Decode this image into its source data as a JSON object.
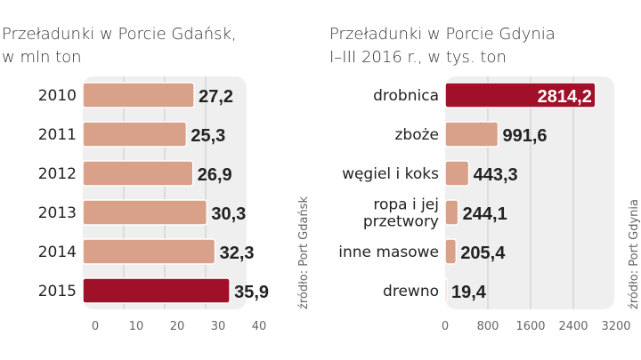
{
  "chart_data": [
    {
      "type": "bar",
      "orientation": "horizontal",
      "title": "Przeładunki w Porcie Gdańsk,",
      "subtitle": "w mln ton",
      "categories": [
        "2010",
        "2011",
        "2012",
        "2013",
        "2014",
        "2015"
      ],
      "values": [
        27.2,
        25.3,
        26.9,
        30.3,
        32.3,
        35.9
      ],
      "value_labels": [
        "27,2",
        "25,3",
        "26,9",
        "30,3",
        "32,3",
        "35,9"
      ],
      "highlight_index": 5,
      "xlim": [
        0,
        40
      ],
      "xticks": [
        "0",
        "10",
        "20",
        "30",
        "40"
      ],
      "tick_values": [
        0,
        10,
        20,
        30,
        40
      ],
      "grid": true,
      "source": "źródło: Port Gdańsk"
    },
    {
      "type": "bar",
      "orientation": "horizontal",
      "title": "Przeładunki w Porcie Gdynia",
      "subtitle": "I–III 2016 r., w tys. ton",
      "categories": [
        [
          "drobnica"
        ],
        [
          "zboże"
        ],
        [
          "węgiel i koks"
        ],
        [
          "ropa i jej",
          "przetwory"
        ],
        [
          "inne masowe"
        ],
        [
          "drewno"
        ]
      ],
      "values": [
        2814.2,
        991.6,
        443.3,
        244.1,
        205.4,
        19.4
      ],
      "value_labels": [
        "2814,2",
        "991,6",
        "443,3",
        "244,1",
        "205,4",
        "19,4"
      ],
      "highlight_index": 0,
      "xlim": [
        0,
        3200
      ],
      "xticks": [
        "0",
        "800",
        "1600",
        "2400",
        "3200"
      ],
      "tick_values": [
        0,
        800,
        1600,
        2400,
        3200
      ],
      "grid": true,
      "source": "źródło: Port Gdynia"
    }
  ],
  "colors": {
    "bar": "#d9a08a",
    "highlight": "#a01028",
    "panel": "#efefef",
    "grid": "#c8c8c8"
  }
}
